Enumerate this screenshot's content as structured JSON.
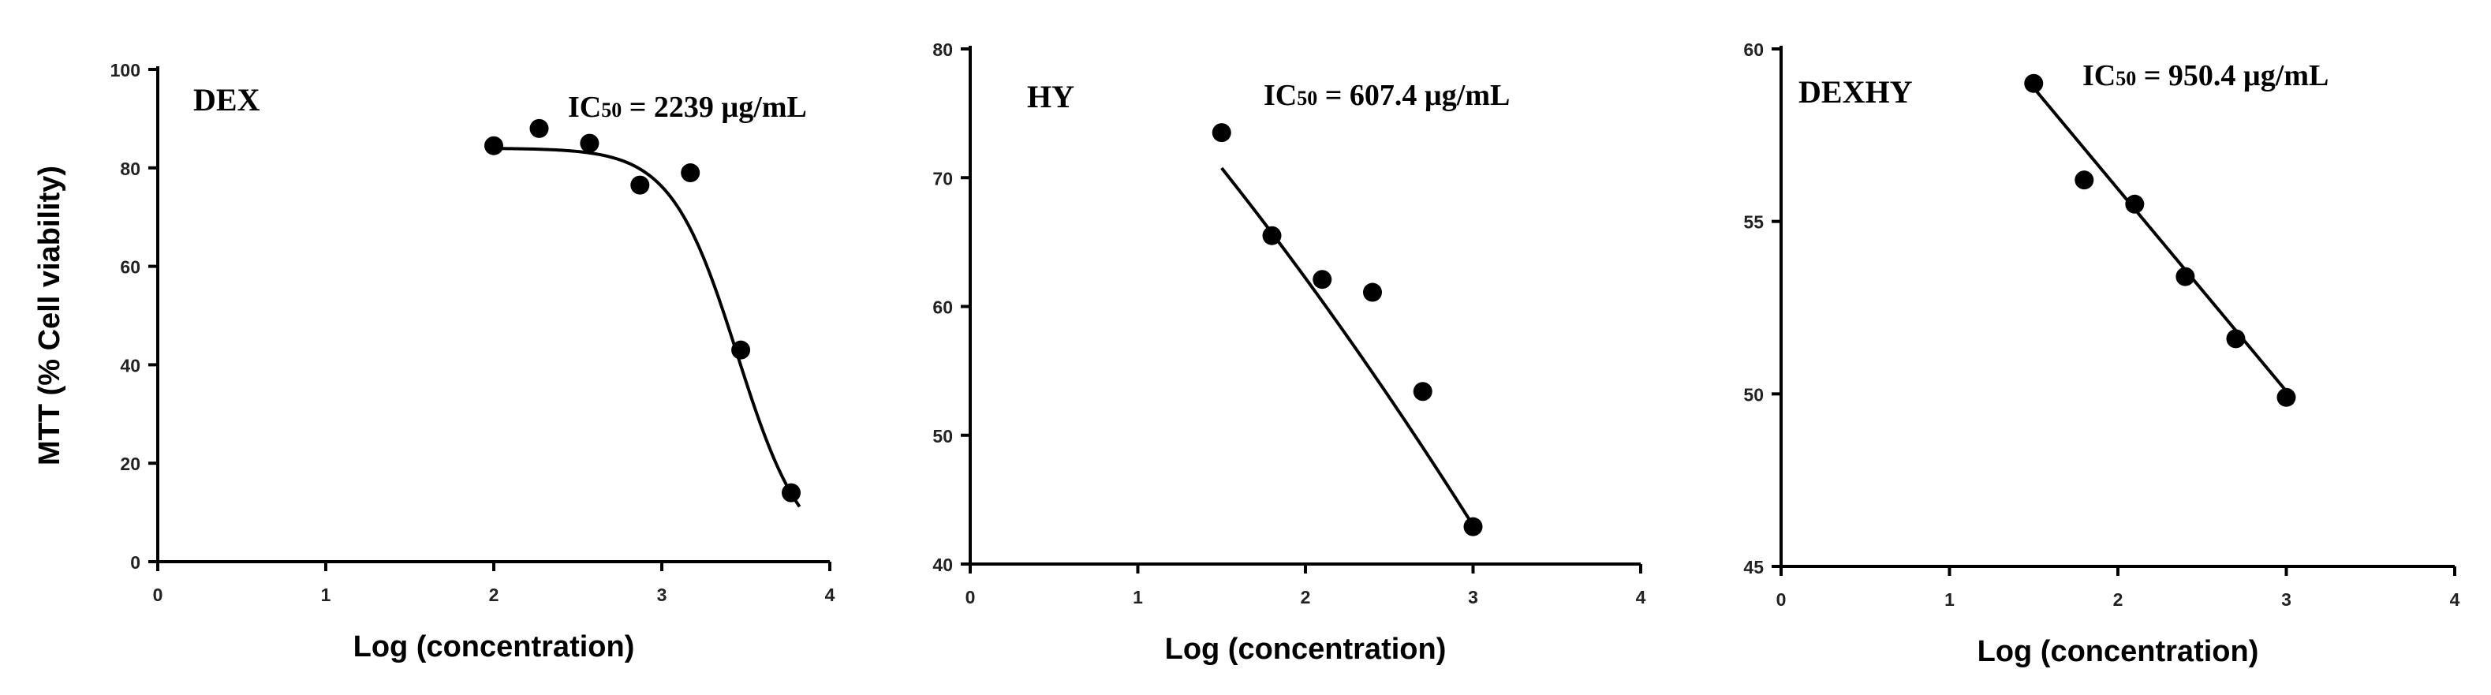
{
  "chart_data": [
    {
      "type": "scatter",
      "panel_label": "DEX",
      "annotation": {
        "prefix": "IC",
        "sub": "50",
        "rest": " = 2239 µg/mL"
      },
      "ylabel": "MTT (% Cell viability)",
      "xlabel": "Log (concentration)",
      "xlim": [
        0,
        4
      ],
      "ylim": [
        0,
        100
      ],
      "xticks": [
        0,
        1,
        2,
        3,
        4
      ],
      "yticks": [
        0,
        20,
        40,
        60,
        80,
        100
      ],
      "points": [
        {
          "x": 2.0,
          "y": 84.5
        },
        {
          "x": 2.27,
          "y": 88.0
        },
        {
          "x": 2.57,
          "y": 85.0
        },
        {
          "x": 2.87,
          "y": 76.5
        },
        {
          "x": 3.17,
          "y": 79.0
        },
        {
          "x": 3.47,
          "y": 43.0
        },
        {
          "x": 3.77,
          "y": 14.0
        }
      ],
      "fit": {
        "model": "sigmoid",
        "top": 84,
        "bottom": 0,
        "logIC50": 3.45,
        "hill": -2.2,
        "x_range": [
          1.97,
          3.82
        ]
      }
    },
    {
      "type": "scatter",
      "panel_label": "HY",
      "annotation": {
        "prefix": "IC",
        "sub": "50",
        "rest": " = 607.4 µg/mL"
      },
      "ylabel": "",
      "xlabel": "Log (concentration)",
      "xlim": [
        0,
        4
      ],
      "ylim": [
        40,
        80
      ],
      "xticks": [
        0,
        1,
        2,
        3,
        4
      ],
      "yticks": [
        40,
        50,
        60,
        70,
        80
      ],
      "points": [
        {
          "x": 1.5,
          "y": 73.5
        },
        {
          "x": 1.8,
          "y": 65.5
        },
        {
          "x": 2.1,
          "y": 62.1
        },
        {
          "x": 2.4,
          "y": 61.1
        },
        {
          "x": 2.7,
          "y": 53.4
        },
        {
          "x": 3.0,
          "y": 42.9
        }
      ],
      "fit": {
        "model": "quadratic",
        "a": 92.2,
        "b": -12.2,
        "c": -1.4,
        "x_range": [
          1.5,
          3.0
        ]
      }
    },
    {
      "type": "scatter",
      "panel_label": "DEXHY",
      "annotation": {
        "prefix": "IC",
        "sub": "50",
        "rest": " = 950.4 µg/mL"
      },
      "ylabel": "",
      "xlabel": "Log (concentration)",
      "xlim": [
        0,
        4
      ],
      "ylim": [
        45,
        60
      ],
      "xticks": [
        0,
        1,
        2,
        3,
        4
      ],
      "yticks": [
        45,
        50,
        55,
        60
      ],
      "points": [
        {
          "x": 1.5,
          "y": 59.0
        },
        {
          "x": 1.8,
          "y": 56.2
        },
        {
          "x": 2.1,
          "y": 55.5
        },
        {
          "x": 2.4,
          "y": 53.4
        },
        {
          "x": 2.7,
          "y": 51.6
        },
        {
          "x": 3.0,
          "y": 49.9
        }
      ],
      "fit": {
        "model": "linear",
        "slope": -5.86,
        "intercept": 67.66,
        "x_range": [
          1.5,
          3.0
        ]
      }
    }
  ]
}
